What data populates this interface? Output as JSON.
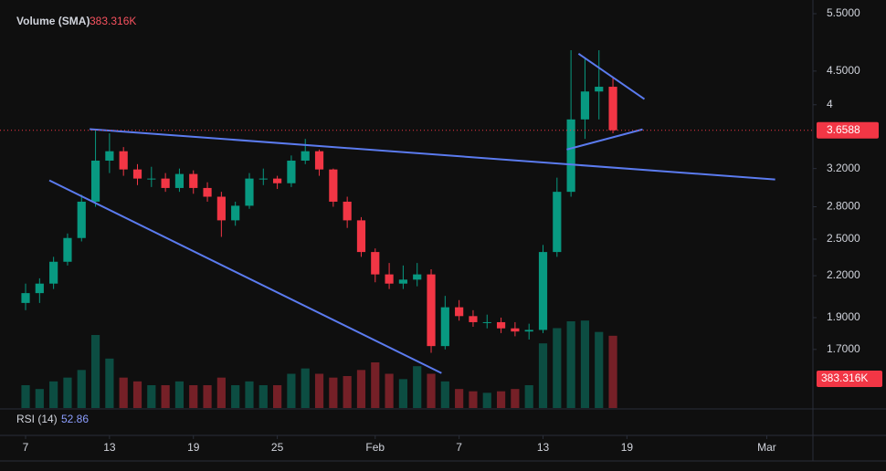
{
  "chart_data": {
    "type": "candlestick",
    "log": true,
    "up_color": "#089981",
    "down_color": "#f23645",
    "line_color": "#5b7bef",
    "xlim": [
      -1.83,
      56.3
    ],
    "xticks": [
      {
        "value": 0,
        "label": "7"
      },
      {
        "value": 6,
        "label": "13"
      },
      {
        "value": 12,
        "label": "19"
      },
      {
        "value": 18,
        "label": "25"
      },
      {
        "value": 25,
        "label": "Feb"
      },
      {
        "value": 31,
        "label": "7"
      },
      {
        "value": 37,
        "label": "13"
      },
      {
        "value": 43,
        "label": "19"
      },
      {
        "value": 53,
        "label": "Mar"
      }
    ],
    "ylim": [
      1.385,
      5.77
    ],
    "yticks": [
      {
        "value": 5.5,
        "label": "5.5000"
      },
      {
        "value": 4.5,
        "label": "4.5000"
      },
      4,
      {
        "value": 3.2,
        "label": "3.2000"
      },
      {
        "value": 2.8,
        "label": "2.8000"
      },
      {
        "value": 2.5,
        "label": "2.5000"
      },
      {
        "value": 2.2,
        "label": "2.2000"
      },
      {
        "value": 1.9,
        "label": "1.9000"
      },
      {
        "value": 1.7,
        "label": "1.7000"
      }
    ],
    "last_price": 3.6588,
    "open": [
      2.0,
      2.07,
      2.14,
      2.31,
      2.51,
      2.85,
      3.29,
      3.4,
      3.19,
      3.09,
      3.09,
      2.99,
      3.14,
      2.99,
      2.9,
      2.67,
      2.81,
      3.09,
      3.09,
      3.04,
      3.29,
      3.4,
      3.19,
      2.85,
      2.67,
      2.39,
      2.21,
      2.14,
      2.17,
      2.21,
      1.72,
      1.97,
      1.91,
      1.87,
      1.87,
      1.83,
      1.81,
      1.82,
      2.39,
      2.95,
      3.8,
      4.19,
      4.26
    ],
    "high": [
      2.14,
      2.18,
      2.35,
      2.55,
      2.92,
      3.66,
      3.62,
      3.45,
      3.25,
      3.22,
      3.15,
      3.2,
      3.18,
      3.05,
      2.95,
      2.85,
      3.15,
      3.2,
      3.12,
      3.35,
      3.55,
      3.42,
      3.2,
      2.9,
      2.7,
      2.42,
      2.3,
      2.28,
      2.3,
      2.25,
      2.05,
      2.02,
      1.95,
      1.92,
      1.9,
      1.87,
      1.86,
      2.45,
      3.1,
      4.84,
      4.7,
      4.84,
      4.4
    ],
    "low": [
      1.95,
      2.0,
      2.1,
      2.28,
      2.48,
      2.8,
      3.15,
      3.12,
      3.02,
      3.0,
      2.95,
      2.95,
      2.93,
      2.85,
      2.52,
      2.62,
      2.78,
      3.02,
      2.98,
      3.0,
      3.25,
      3.12,
      2.8,
      2.6,
      2.35,
      2.15,
      2.1,
      2.1,
      2.12,
      1.68,
      1.7,
      1.88,
      1.84,
      1.83,
      1.8,
      1.78,
      1.76,
      1.8,
      2.35,
      2.9,
      3.55,
      3.8,
      3.62
    ],
    "close": [
      2.07,
      2.14,
      2.31,
      2.51,
      2.85,
      3.29,
      3.4,
      3.19,
      3.09,
      3.09,
      2.99,
      3.14,
      2.99,
      2.9,
      2.67,
      2.81,
      3.09,
      3.09,
      3.04,
      3.29,
      3.4,
      3.19,
      2.85,
      2.67,
      2.39,
      2.21,
      2.14,
      2.17,
      2.21,
      1.72,
      1.97,
      1.91,
      1.87,
      1.87,
      1.83,
      1.81,
      1.82,
      2.39,
      2.95,
      3.8,
      4.19,
      4.26,
      3.6588
    ],
    "trendlines": [
      {
        "x": [
          4.58,
          53.6
        ],
        "y": [
          3.673,
          3.08
        ]
      },
      {
        "x": [
          1.7,
          29.74
        ],
        "y": [
          3.07,
          1.565
        ]
      },
      {
        "x": [
          39.54,
          44.25
        ],
        "y": [
          4.782,
          4.08
        ]
      },
      {
        "x": [
          38.69,
          44.12
        ],
        "y": [
          3.42,
          3.67
        ]
      }
    ],
    "volume": {
      "name": "Volume (SMA)",
      "sma": 383.316,
      "sma_label": "383.316K",
      "vlim": [
        0,
        1560
      ],
      "values": [
        300,
        250,
        350,
        400,
        500,
        960,
        650,
        400,
        350,
        300,
        300,
        350,
        300,
        300,
        400,
        300,
        350,
        300,
        300,
        450,
        520,
        450,
        400,
        420,
        500,
        600,
        450,
        380,
        550,
        450,
        350,
        250,
        220,
        200,
        220,
        250,
        300,
        850,
        1050,
        1140,
        1150,
        1000,
        950
      ]
    },
    "rsi": {
      "name": "RSI (14)",
      "value": 52.86
    }
  }
}
